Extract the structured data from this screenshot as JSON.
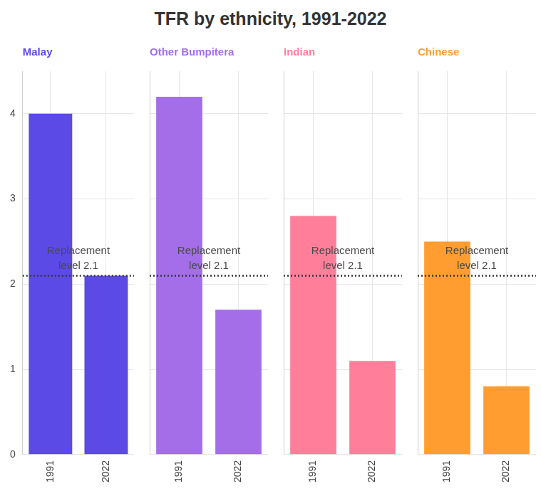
{
  "title": "TFR by ethnicity, 1991-2022",
  "chart_data": [
    {
      "type": "bar",
      "title": "Malay",
      "categories": [
        "1991",
        "2022"
      ],
      "values": [
        4.0,
        2.1
      ],
      "color": "#5b4ae6",
      "ylim": [
        0,
        4.5
      ],
      "yticks": [
        0,
        1,
        2,
        3,
        4
      ],
      "grid": true,
      "annotations": [
        {
          "y": 2.1,
          "text": [
            "Replacement",
            "level 2.1"
          ],
          "line_style": "dotted"
        }
      ]
    },
    {
      "type": "bar",
      "title": "Other Bumpitera",
      "categories": [
        "1991",
        "2022"
      ],
      "values": [
        4.2,
        1.7
      ],
      "color": "#a36ee8",
      "ylim": [
        0,
        4.5
      ],
      "yticks": [
        0,
        1,
        2,
        3,
        4
      ],
      "grid": true,
      "tick_labels": "x",
      "annotations": [
        {
          "y": 2.1,
          "text": [
            "Replacement",
            "level 2.1"
          ],
          "line_style": "dotted"
        }
      ]
    },
    {
      "type": "bar",
      "title": "Indian",
      "categories": [
        "1991",
        "2022"
      ],
      "values": [
        2.8,
        1.1
      ],
      "color": "#ff7f9a",
      "ylim": [
        0,
        4.5
      ],
      "yticks": [
        0,
        1,
        2,
        3,
        4
      ],
      "grid": true,
      "tick_labels": "x",
      "annotations": [
        {
          "y": 2.1,
          "text": [
            "Replacement",
            "level 2.1"
          ],
          "line_style": "dotted"
        }
      ]
    },
    {
      "type": "bar",
      "title": "Chinese",
      "categories": [
        "1991",
        "2022"
      ],
      "values": [
        2.5,
        0.8
      ],
      "color": "#ff9d30",
      "ylim": [
        0,
        4.5
      ],
      "yticks": [
        0,
        1,
        2,
        3,
        4
      ],
      "grid": true,
      "tick_labels": "x",
      "annotations": [
        {
          "y": 2.1,
          "text": [
            "Replacement",
            "level 2.1"
          ],
          "line_style": "dotted"
        }
      ]
    }
  ]
}
